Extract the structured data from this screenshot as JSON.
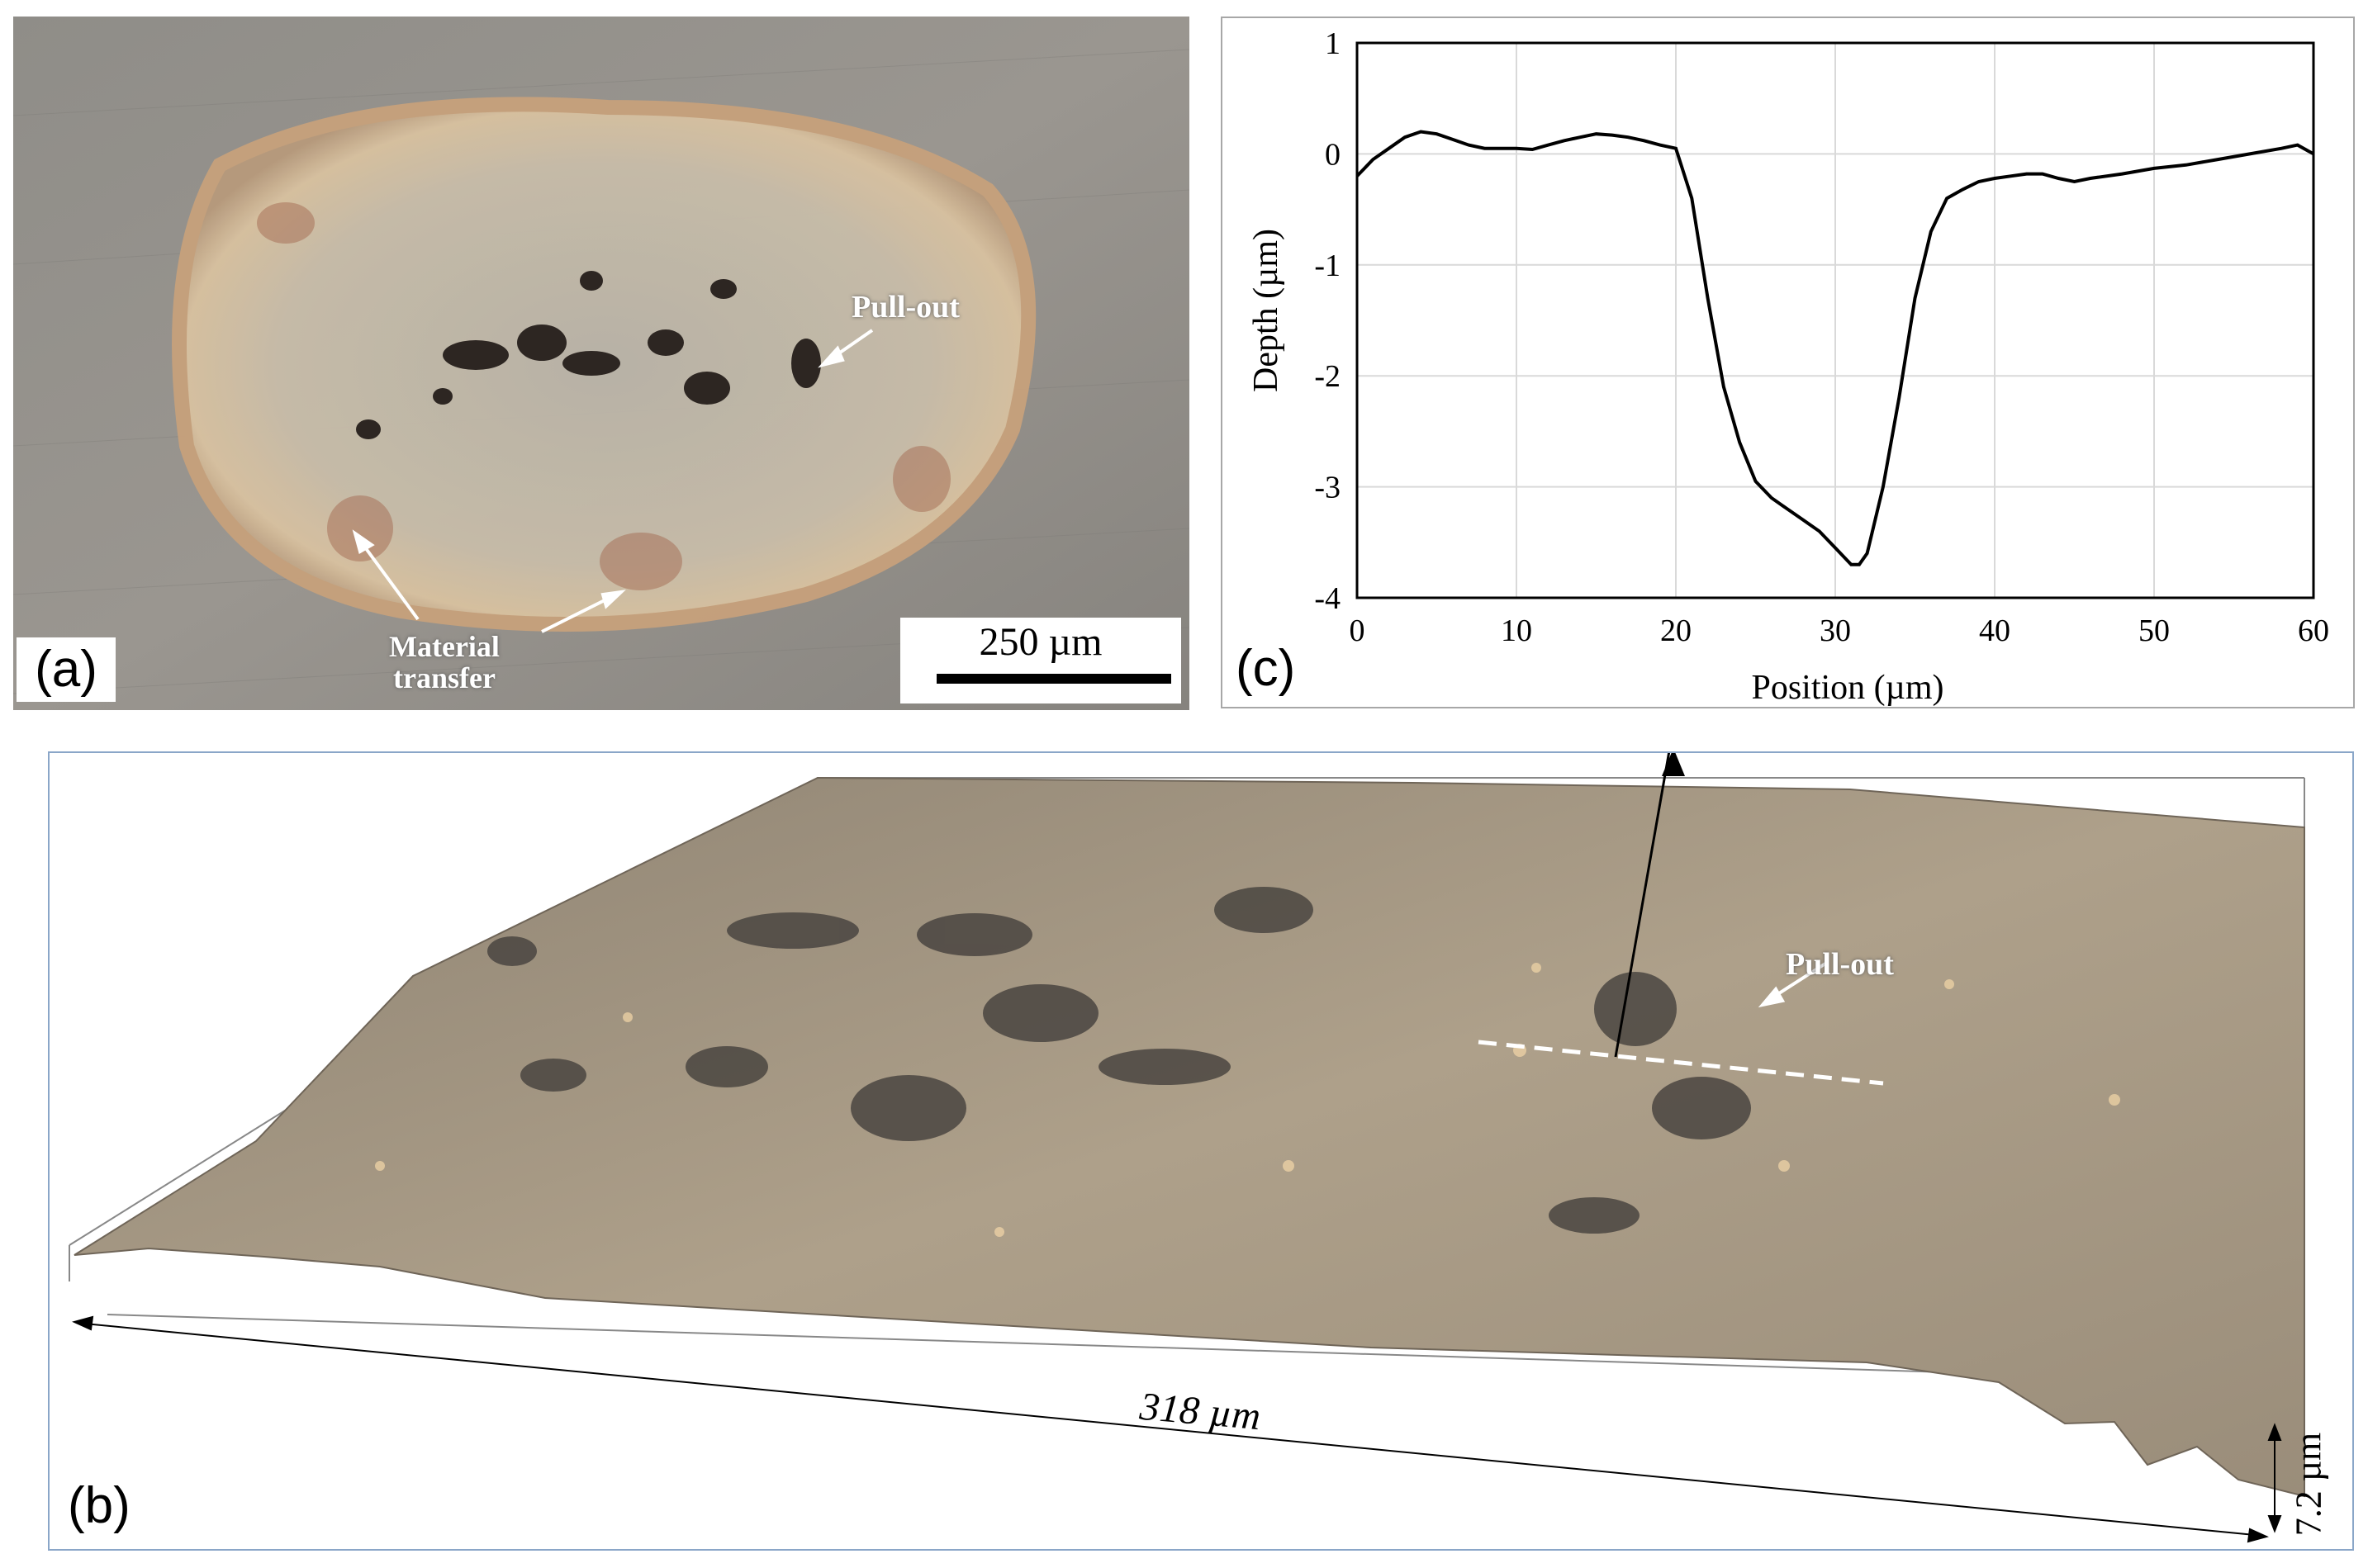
{
  "panel_a": {
    "letter": "(a)",
    "annotation_pullout": "Pull-out",
    "annotation_material_1": "Material",
    "annotation_material_2": "transfer",
    "scale_bar_label": "250 µm"
  },
  "panel_b": {
    "letter": "(b)",
    "annotation_pullout": "Pull-out",
    "width_label": "318 µm",
    "height_label": "7.2 µm"
  },
  "panel_c": {
    "letter": "(c)"
  },
  "colors": {
    "surface_grey": "#8a8883",
    "wear_scar": "#c9bfae",
    "profile_line": "#000000",
    "panel_b_border": "#8aa6c8",
    "grid": "#d9d9d9"
  },
  "chart_data": {
    "type": "line",
    "xlabel": "Position (µm)",
    "ylabel": "Depth (µm)",
    "xlim": [
      0,
      60
    ],
    "ylim": [
      -4,
      1
    ],
    "xticks": [
      "0",
      "10",
      "20",
      "30",
      "40",
      "50",
      "60"
    ],
    "yticks": [
      "1",
      "0",
      "-1",
      "-2",
      "-3",
      "-4"
    ],
    "grid": true,
    "series": [
      {
        "x": [
          0,
          1,
          2,
          3,
          4,
          5,
          6,
          7,
          8,
          9,
          10,
          11,
          12,
          13,
          14,
          15,
          16,
          17,
          18,
          19,
          20,
          21,
          22,
          23,
          24,
          25,
          26,
          27,
          28,
          29,
          30,
          31,
          31.5,
          32,
          33,
          34,
          35,
          36,
          37,
          38,
          39,
          40,
          41,
          42,
          43,
          44,
          45,
          46,
          48,
          50,
          52,
          54,
          56,
          58,
          59,
          60
        ],
        "y": [
          -0.2,
          -0.05,
          0.05,
          0.15,
          0.2,
          0.18,
          0.13,
          0.08,
          0.05,
          0.05,
          0.05,
          0.04,
          0.08,
          0.12,
          0.15,
          0.18,
          0.17,
          0.15,
          0.12,
          0.08,
          0.05,
          -0.4,
          -1.3,
          -2.1,
          -2.6,
          -2.95,
          -3.1,
          -3.2,
          -3.3,
          -3.4,
          -3.55,
          -3.7,
          -3.7,
          -3.6,
          -3.0,
          -2.2,
          -1.3,
          -0.7,
          -0.4,
          -0.32,
          -0.25,
          -0.22,
          -0.2,
          -0.18,
          -0.18,
          -0.22,
          -0.25,
          -0.22,
          -0.18,
          -0.13,
          -0.1,
          -0.05,
          0.0,
          0.05,
          0.08,
          0.0
        ]
      }
    ]
  }
}
